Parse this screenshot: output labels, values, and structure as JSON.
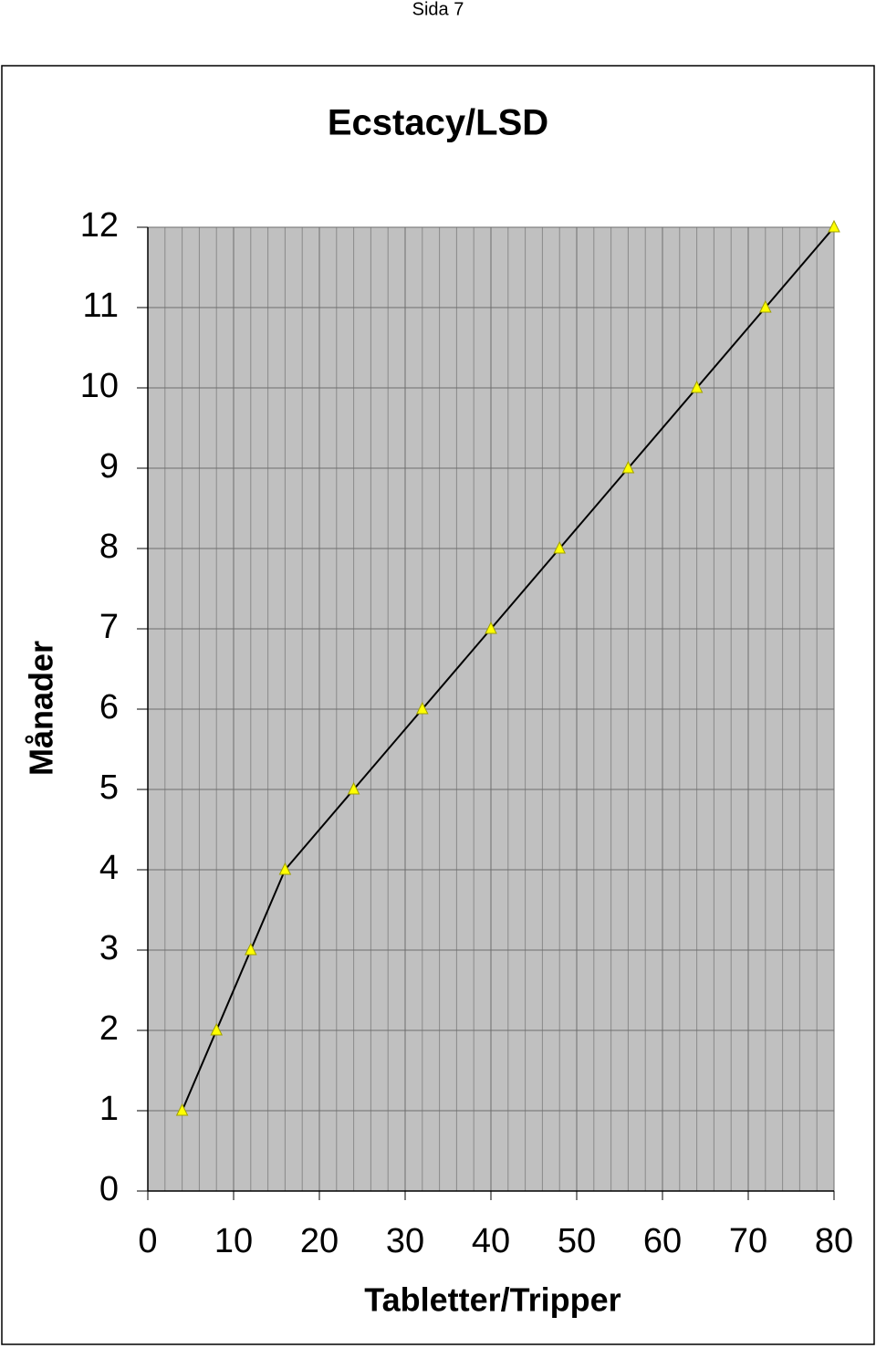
{
  "header": "Sida 7",
  "chart_data": {
    "type": "line",
    "title": "Ecstacy/LSD",
    "x_label": "Tabletter/Tripper",
    "y_label": "Månader",
    "x": [
      4,
      8,
      12,
      16,
      24,
      32,
      40,
      48,
      56,
      64,
      72,
      80
    ],
    "series": [
      {
        "color": "#ffff00",
        "values": [
          1,
          2,
          3,
          4,
          5,
          6,
          7,
          8,
          9,
          10,
          11,
          12
        ]
      }
    ],
    "xlim": [
      0,
      80
    ],
    "xticks": [
      0,
      10,
      20,
      30,
      40,
      50,
      60,
      70,
      80
    ],
    "ylim": [
      0,
      12
    ],
    "yticks": [
      0,
      1,
      2,
      3,
      4,
      5,
      6,
      7,
      8,
      9,
      10,
      11,
      12
    ],
    "x_minor_grid": 2,
    "grid": true
  }
}
